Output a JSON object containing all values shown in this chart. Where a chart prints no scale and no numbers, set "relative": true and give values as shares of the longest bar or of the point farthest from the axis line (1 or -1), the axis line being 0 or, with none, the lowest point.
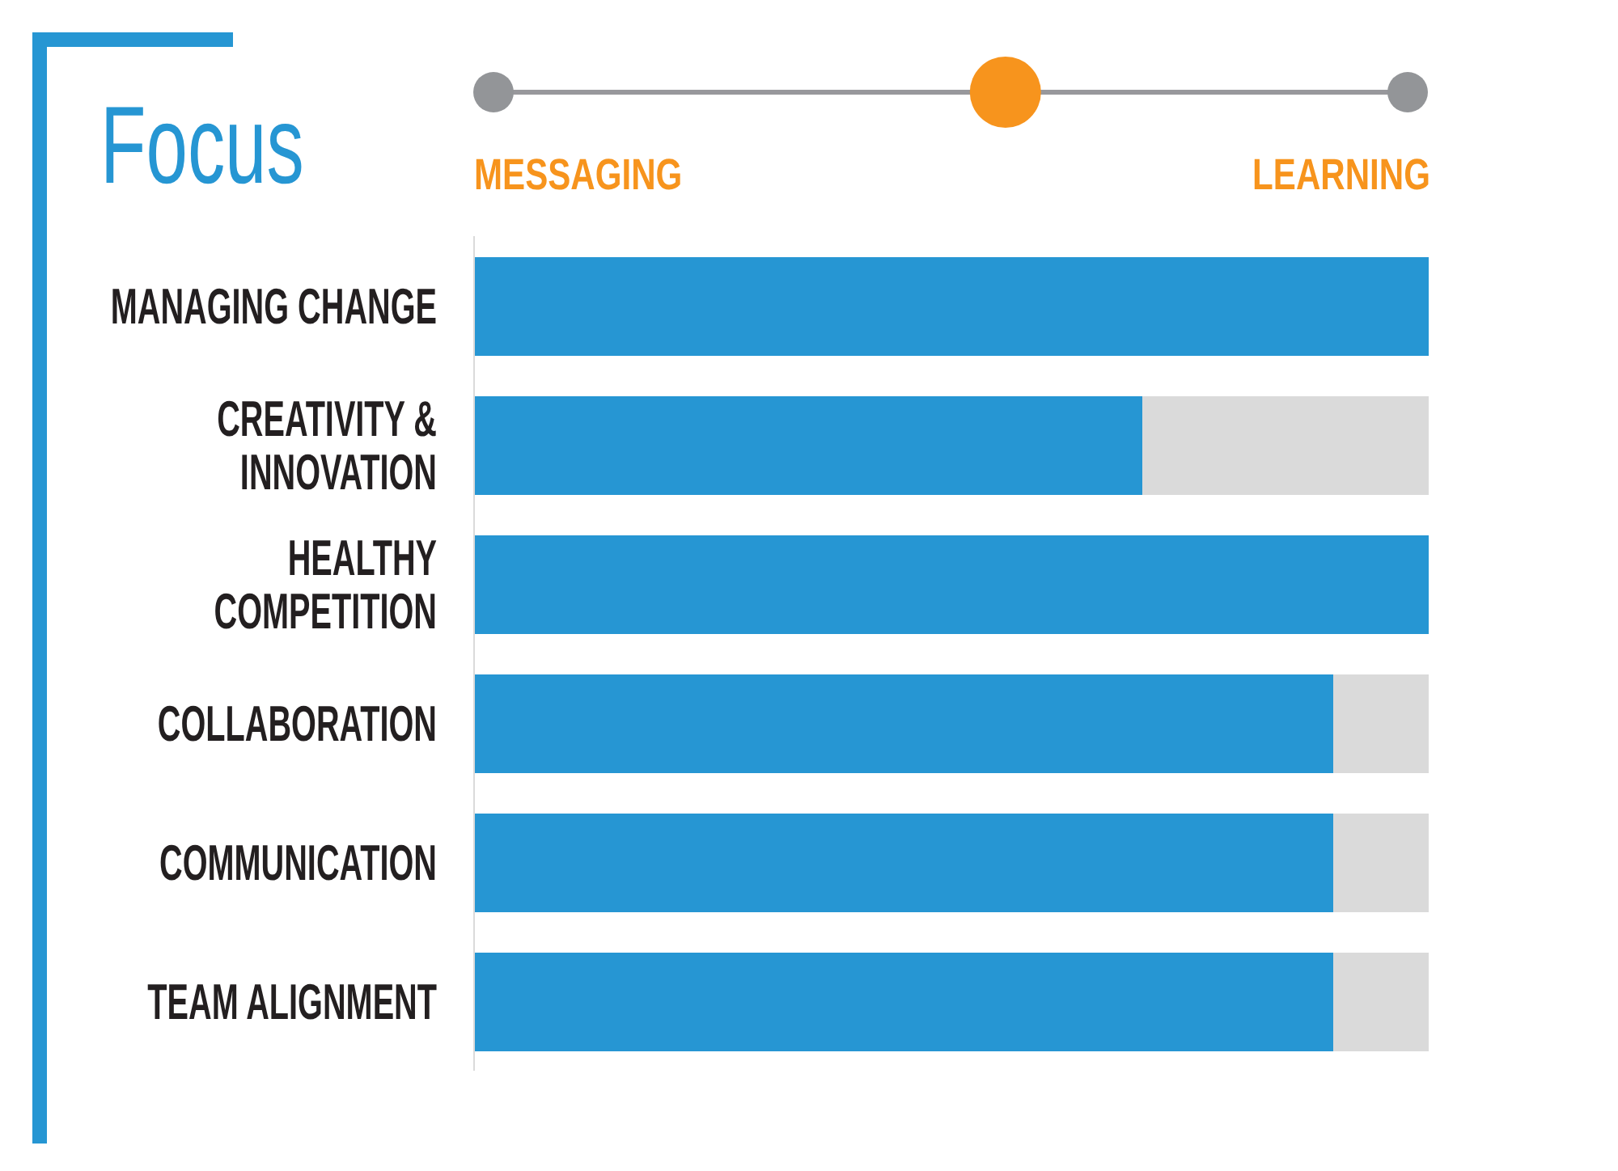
{
  "chart_data": {
    "type": "bar",
    "title": "Focus",
    "orientation": "horizontal",
    "relative": true,
    "stacked": true,
    "categories": [
      "MANAGING CHANGE",
      "CREATIVITY & INNOVATION",
      "HEALTHY COMPETITION",
      "COLLABORATION",
      "COMMUNICATION",
      "TEAM ALIGNMENT"
    ],
    "series": [
      {
        "color": "#2696d3",
        "values": [
          1,
          0.7,
          1,
          0.9,
          0.9,
          0.9
        ]
      },
      {
        "color": "#dadada",
        "values": [
          0,
          0.3,
          0,
          0.1,
          0.1,
          0.1
        ]
      }
    ],
    "annotations": [
      "MESSAGING",
      "LEARNING"
    ]
  }
}
